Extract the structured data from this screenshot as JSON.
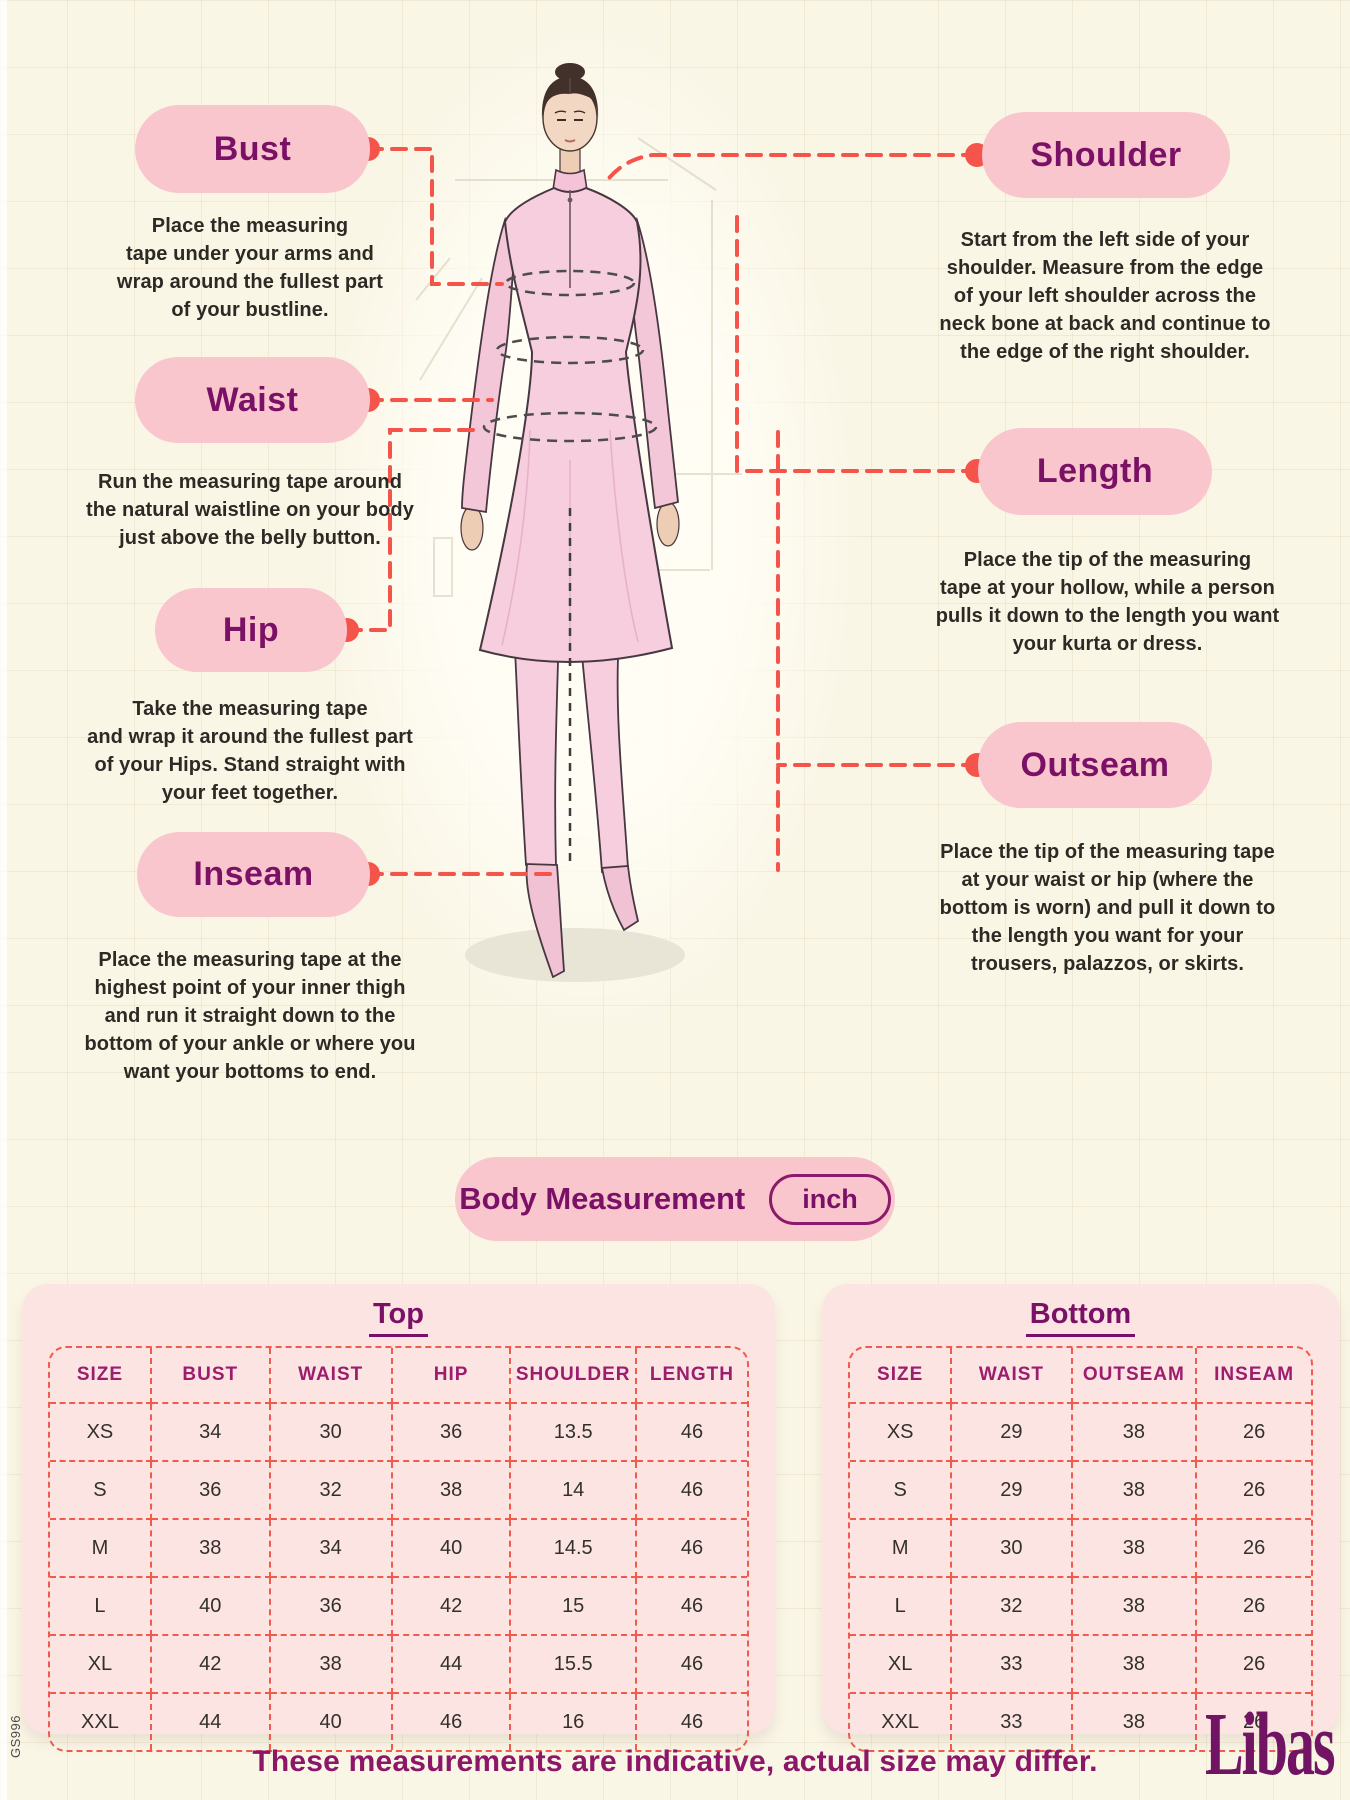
{
  "page": {
    "footer_note": "These measurements are indicative, actual size may differ.",
    "brand_logo": "Libas",
    "side_code": "GS996"
  },
  "colors": {
    "background_cream": "#faf6e6",
    "pill_pink": "#f9c6ce",
    "accent_purple": "#7b1166",
    "dash_red": "#f4544a",
    "card_pink": "#fbe4e1",
    "table_header_purple": "#9c1c6d"
  },
  "measurements": {
    "bust": {
      "label": "Bust",
      "desc": "Place the measuring\ntape under your arms and\nwrap around the fullest part\nof your bustline."
    },
    "waist": {
      "label": "Waist",
      "desc": "Run the measuring tape around\nthe natural waistline on your body\njust above the belly button."
    },
    "hip": {
      "label": "Hip",
      "desc": "Take the measuring tape\nand wrap it around the fullest part\nof your Hips. Stand straight with\nyour feet together."
    },
    "inseam": {
      "label": "Inseam",
      "desc": "Place the measuring tape at the\nhighest point of your inner thigh\nand run it straight down to the\nbottom of your ankle or where you\nwant your bottoms to end."
    },
    "shoulder": {
      "label": "Shoulder",
      "desc": "Start from the left side of your\nshoulder. Measure from the edge\nof your left shoulder across the\nneck bone at back and continue to\nthe edge of the right shoulder."
    },
    "length": {
      "label": "Length",
      "desc": "Place the tip of the measuring\ntape at your hollow, while a person\npulls it down to the length you want\nyour kurta or dress."
    },
    "outseam": {
      "label": "Outseam",
      "desc": "Place the tip of the measuring tape\nat your waist or hip (where the\nbottom is worn) and pull it down to\nthe length you want for your\ntrousers, palazzos, or skirts."
    }
  },
  "unit_bar": {
    "label": "Body Measurement",
    "unit": "inch"
  },
  "tables": {
    "top": {
      "title": "Top",
      "headers": [
        "SIZE",
        "BUST",
        "WAIST",
        "HIP",
        "SHOULDER",
        "LENGTH"
      ],
      "rows": [
        [
          "XS",
          "34",
          "30",
          "36",
          "13.5",
          "46"
        ],
        [
          "S",
          "36",
          "32",
          "38",
          "14",
          "46"
        ],
        [
          "M",
          "38",
          "34",
          "40",
          "14.5",
          "46"
        ],
        [
          "L",
          "40",
          "36",
          "42",
          "15",
          "46"
        ],
        [
          "XL",
          "42",
          "38",
          "44",
          "15.5",
          "46"
        ],
        [
          "XXL",
          "44",
          "40",
          "46",
          "16",
          "46"
        ]
      ]
    },
    "bottom": {
      "title": "Bottom",
      "headers": [
        "SIZE",
        "WAIST",
        "OUTSEAM",
        "INSEAM"
      ],
      "rows": [
        [
          "XS",
          "29",
          "38",
          "26"
        ],
        [
          "S",
          "29",
          "38",
          "26"
        ],
        [
          "M",
          "30",
          "38",
          "26"
        ],
        [
          "L",
          "32",
          "38",
          "26"
        ],
        [
          "XL",
          "33",
          "38",
          "26"
        ],
        [
          "XXL",
          "33",
          "38",
          "26"
        ]
      ]
    }
  }
}
